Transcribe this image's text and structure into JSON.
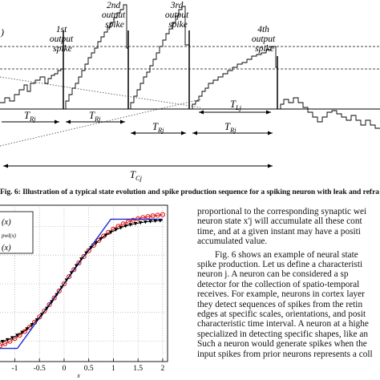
{
  "figure6": {
    "spike_labels": [
      {
        "line1": "1st",
        "line2": "output",
        "line3": "spike"
      },
      {
        "line1": "2nd",
        "line2": "output",
        "line3": "spike"
      },
      {
        "line1": "3rd",
        "line2": "output",
        "line3": "spike"
      },
      {
        "line1": "4th",
        "line2": "output",
        "line3": "spike"
      }
    ],
    "t_label": "T",
    "interval_subscripts": [
      "Rj",
      "Rj",
      "Rj",
      "Rj",
      "Lj"
    ],
    "tc_subscript": "Cj",
    "left_edge_text": ")",
    "caption": "Fig. 6: Illustration of a typical state evolution and spike production sequence for a spiking neuron with leak and refra"
  },
  "plot": {
    "legend": [
      "(x)",
      "pwl(x)",
      "(x)"
    ],
    "x_ticks": [
      "-1",
      "-0.5",
      "0",
      "0.5",
      "1",
      "1.5",
      "2"
    ],
    "xlabel": "x",
    "colors": {
      "red": "#dd1111",
      "blue": "#1a2bd6",
      "black": "#000000"
    },
    "chart_data": {
      "type": "line",
      "xlim": [
        -1.3,
        2.05
      ],
      "ylim": [
        -1.05,
        1.05
      ],
      "series": [
        {
          "color": "red",
          "marker": "circle",
          "function": "tanh(x)",
          "x_start": -1.3,
          "x_end": 2.0
        },
        {
          "color": "blue",
          "marker": "line",
          "function": "piecewise linear saturating at ±0.9",
          "x_start": -1.3,
          "x_end": 2.0
        },
        {
          "color": "black",
          "marker": "triangle",
          "function": "saturating sigmoid, plateau at 0.9",
          "x_start": -1.3,
          "x_end": 2.0
        }
      ]
    }
  },
  "body": {
    "lines": [
      "proportional to the corresponding synaptic wei",
      "neuron state x'j will accumulate all these cont",
      "time, and at a given instant may have a positi",
      "accumulated value.",
      "Fig. 6 shows an example of neural state",
      "spike production. Let us define a characteristi",
      "neuron j. A neuron can be considered a sp",
      "detector for the collection of spatio-temporal",
      "receives. For example, neurons in cortex layer",
      "they detect sequences of spikes from the retin",
      "edges at specific scales, orientations, and posit",
      "characteristic time interval. A neuron at a highe",
      "specialized in detecting specific shapes, like an",
      "Such a neuron would generate spikes when the",
      "input spikes from prior neurons represents a coll"
    ]
  }
}
